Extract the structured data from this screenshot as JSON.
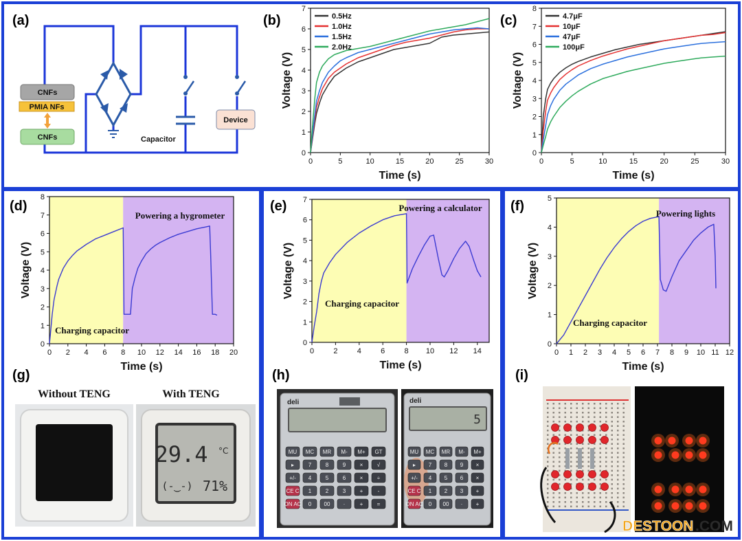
{
  "colors": {
    "frame": "#1a3fd6",
    "wire": "#1b36d9",
    "charge_bg": "#fdfdb4",
    "power_bg": "#d4b4f2",
    "trace": "#3a3ad2",
    "b_05": "#333333",
    "b_10": "#e53030",
    "b_15": "#2a6fdd",
    "b_20": "#2eaa5c",
    "c_47": "#333333",
    "c_10": "#e53030",
    "c_47uF": "#2a6fdd",
    "c_100": "#2eaa5c"
  },
  "labels": {
    "a": "(a)",
    "b": "(b)",
    "c": "(c)",
    "d": "(d)",
    "e": "(e)",
    "f": "(f)",
    "g": "(g)",
    "h": "(h)",
    "i": "(i)"
  },
  "circuit": {
    "cnfs_top": "CNFs",
    "pmia": "PMIA NFs",
    "cnfs_bottom": "CNFs",
    "capacitor": "Capacitor",
    "device": "Device"
  },
  "photos": {
    "g_left_caption": "Without TENG",
    "g_right_caption": "With TENG",
    "display_temp": "29.4",
    "display_unit": "°C",
    "display_face": "(-‿-)",
    "display_humidity": "71%",
    "calc_brand": "deli",
    "calc_display_right": "5",
    "calc_keys": [
      [
        "MU",
        "MC",
        "MR",
        "M-",
        "M+",
        "GT"
      ],
      [
        "▸",
        "7",
        "8",
        "9",
        "×",
        "√"
      ],
      [
        "+/-",
        "4",
        "5",
        "6",
        "×",
        "÷"
      ],
      [
        "CE C",
        "1",
        "2",
        "3",
        "+",
        "-"
      ],
      [
        "ON AC",
        "0",
        "00",
        "·",
        "+",
        "="
      ]
    ],
    "watermark_a": "DESTOON",
    "watermark_b": ".COM"
  },
  "chart_data": [
    {
      "id": "b",
      "type": "line",
      "xlabel": "Time (s)",
      "ylabel": "Voltage (V)",
      "xlim": [
        0,
        30
      ],
      "ylim": [
        0,
        7
      ],
      "xticks": [
        0,
        5,
        10,
        15,
        20,
        25,
        30
      ],
      "yticks": [
        0,
        1,
        2,
        3,
        4,
        5,
        6,
        7
      ],
      "legend_position": "top-left",
      "series": [
        {
          "name": "0.5Hz",
          "color_key": "b_05",
          "x": [
            0,
            0.3,
            0.7,
            1,
            1.5,
            2,
            3,
            4,
            5,
            6,
            8,
            10,
            12,
            14,
            16,
            18,
            20,
            22,
            24,
            26,
            28,
            30
          ],
          "y": [
            0,
            0.6,
            1.4,
            1.9,
            2.4,
            2.8,
            3.3,
            3.7,
            3.9,
            4.1,
            4.4,
            4.6,
            4.8,
            5.0,
            5.1,
            5.2,
            5.3,
            5.6,
            5.7,
            5.75,
            5.8,
            5.85
          ]
        },
        {
          "name": "1.0Hz",
          "color_key": "b_10",
          "x": [
            0,
            0.3,
            0.7,
            1,
            1.5,
            2,
            3,
            4,
            5,
            6,
            8,
            10,
            12,
            14,
            16,
            18,
            20,
            22,
            24,
            26,
            28,
            30
          ],
          "y": [
            0,
            0.7,
            1.6,
            2.2,
            2.7,
            3.1,
            3.6,
            3.9,
            4.1,
            4.3,
            4.6,
            4.8,
            5.0,
            5.2,
            5.35,
            5.45,
            5.55,
            5.7,
            5.85,
            5.95,
            6.0,
            6.0
          ]
        },
        {
          "name": "1.5Hz",
          "color_key": "b_15",
          "x": [
            0,
            0.3,
            0.7,
            1,
            1.5,
            2,
            3,
            4,
            5,
            6,
            8,
            10,
            12,
            14,
            16,
            18,
            20,
            22,
            24,
            26,
            28,
            30
          ],
          "y": [
            0,
            0.8,
            1.8,
            2.5,
            3.0,
            3.4,
            3.9,
            4.2,
            4.45,
            4.6,
            4.85,
            5.0,
            5.15,
            5.3,
            5.45,
            5.6,
            5.75,
            5.85,
            5.95,
            6.0,
            6.05,
            6.0
          ]
        },
        {
          "name": "2.0Hz",
          "color_key": "b_20",
          "x": [
            0,
            0.3,
            0.7,
            1,
            1.5,
            2,
            3,
            4,
            5,
            6,
            8,
            10,
            12,
            14,
            16,
            18,
            20,
            22,
            24,
            26,
            28,
            30
          ],
          "y": [
            0,
            1.2,
            2.6,
            3.4,
            3.9,
            4.2,
            4.55,
            4.75,
            4.85,
            4.95,
            5.05,
            5.15,
            5.3,
            5.45,
            5.6,
            5.75,
            5.9,
            6.0,
            6.1,
            6.2,
            6.35,
            6.5
          ]
        }
      ]
    },
    {
      "id": "c",
      "type": "line",
      "xlabel": "Time (s)",
      "ylabel": "Voltage (V)",
      "xlim": [
        0,
        30
      ],
      "ylim": [
        0,
        8
      ],
      "xticks": [
        0,
        5,
        10,
        15,
        20,
        25,
        30
      ],
      "yticks": [
        0,
        1,
        2,
        3,
        4,
        5,
        6,
        7,
        8
      ],
      "legend_position": "top-left",
      "series": [
        {
          "name": "4.7μF",
          "color_key": "c_47",
          "x": [
            0,
            0.3,
            0.7,
            1,
            1.5,
            2,
            3,
            4,
            5,
            6,
            8,
            10,
            12,
            14,
            16,
            18,
            20,
            22,
            24,
            26,
            28,
            30
          ],
          "y": [
            0,
            2.0,
            3.0,
            3.5,
            3.85,
            4.1,
            4.45,
            4.7,
            4.9,
            5.05,
            5.3,
            5.5,
            5.7,
            5.85,
            6.0,
            6.1,
            6.2,
            6.3,
            6.4,
            6.5,
            6.6,
            6.7
          ]
        },
        {
          "name": "10μF",
          "color_key": "c_10",
          "x": [
            0,
            0.3,
            0.7,
            1,
            1.5,
            2,
            3,
            4,
            5,
            6,
            8,
            10,
            12,
            14,
            16,
            18,
            20,
            22,
            24,
            26,
            28,
            30
          ],
          "y": [
            0,
            1.2,
            2.3,
            2.9,
            3.3,
            3.6,
            4.05,
            4.35,
            4.6,
            4.8,
            5.1,
            5.35,
            5.55,
            5.75,
            5.9,
            6.05,
            6.2,
            6.3,
            6.4,
            6.5,
            6.55,
            6.65
          ]
        },
        {
          "name": "47μF",
          "color_key": "c_47uF",
          "x": [
            0,
            0.3,
            0.7,
            1,
            1.5,
            2,
            3,
            4,
            5,
            6,
            8,
            10,
            12,
            14,
            16,
            18,
            20,
            22,
            24,
            26,
            28,
            30
          ],
          "y": [
            0,
            0.7,
            1.5,
            2.1,
            2.6,
            2.95,
            3.45,
            3.8,
            4.05,
            4.3,
            4.65,
            4.9,
            5.1,
            5.3,
            5.45,
            5.6,
            5.75,
            5.85,
            5.95,
            6.05,
            6.1,
            6.15
          ]
        },
        {
          "name": "100μF",
          "color_key": "c_100",
          "x": [
            0,
            0.3,
            0.7,
            1,
            1.5,
            2,
            3,
            4,
            5,
            6,
            8,
            10,
            12,
            14,
            16,
            18,
            20,
            22,
            24,
            26,
            28,
            30
          ],
          "y": [
            0,
            0.4,
            0.9,
            1.3,
            1.7,
            2.0,
            2.5,
            2.85,
            3.15,
            3.4,
            3.8,
            4.1,
            4.3,
            4.5,
            4.65,
            4.8,
            4.95,
            5.05,
            5.15,
            5.25,
            5.3,
            5.35
          ]
        }
      ]
    },
    {
      "id": "d",
      "type": "line",
      "xlabel": "Time (s)",
      "ylabel": "Voltage (V)",
      "xlim": [
        0,
        20
      ],
      "ylim": [
        0,
        8
      ],
      "xticks": [
        0,
        2,
        4,
        6,
        8,
        10,
        12,
        14,
        16,
        18,
        20
      ],
      "yticks": [
        0,
        1,
        2,
        3,
        4,
        5,
        6,
        7,
        8
      ],
      "split_x": 8,
      "annotations": [
        "Charging capacitor",
        "Powering a hygrometer"
      ],
      "series": [
        {
          "name": "",
          "color_key": "trace",
          "x": [
            0,
            0.1,
            0.3,
            0.5,
            0.8,
            1,
            1.5,
            2,
            2.5,
            3,
            4,
            5,
            6,
            7,
            8,
            8.01,
            8.1,
            8.8,
            9,
            9.3,
            9.6,
            10,
            10.5,
            11,
            11.5,
            12,
            13,
            14,
            15,
            16,
            17,
            17.4,
            17.5,
            17.7,
            18,
            18.2
          ],
          "y": [
            0,
            0.5,
            1.6,
            2.4,
            3.1,
            3.5,
            4.1,
            4.5,
            4.8,
            5.05,
            5.4,
            5.7,
            5.9,
            6.1,
            6.3,
            6.3,
            1.6,
            1.6,
            3.0,
            3.6,
            4.1,
            4.5,
            4.9,
            5.15,
            5.35,
            5.5,
            5.75,
            5.95,
            6.1,
            6.25,
            6.35,
            6.4,
            5.0,
            1.6,
            1.6,
            1.55
          ]
        }
      ]
    },
    {
      "id": "e",
      "type": "line",
      "xlabel": "Time (s)",
      "ylabel": "Voltage (V)",
      "xlim": [
        0,
        15
      ],
      "ylim": [
        0,
        7
      ],
      "xticks": [
        0,
        2,
        4,
        6,
        8,
        10,
        12,
        14
      ],
      "yticks": [
        0,
        1,
        2,
        3,
        4,
        5,
        6,
        7
      ],
      "split_x": 8,
      "annotations": [
        "Charging capacitor",
        "Powering a calculator"
      ],
      "series": [
        {
          "name": "",
          "color_key": "trace",
          "x": [
            0,
            0.2,
            0.4,
            0.6,
            0.8,
            1,
            1.5,
            2,
            3,
            4,
            5,
            6,
            7,
            8,
            8.05,
            8.5,
            9,
            9.5,
            10,
            10.3,
            10.7,
            11,
            11.2,
            11.5,
            12,
            12.5,
            13,
            13.3,
            13.7,
            14,
            14.3
          ],
          "y": [
            0,
            0.8,
            1.5,
            2.4,
            3.0,
            3.4,
            3.9,
            4.3,
            4.9,
            5.35,
            5.7,
            6.0,
            6.2,
            6.3,
            2.9,
            3.6,
            4.2,
            4.75,
            5.2,
            5.25,
            4.1,
            3.3,
            3.2,
            3.5,
            4.1,
            4.6,
            4.95,
            4.7,
            4.0,
            3.5,
            3.2
          ]
        }
      ]
    },
    {
      "id": "f",
      "type": "line",
      "xlabel": "Time (s)",
      "ylabel": "Voltage (V)",
      "xlim": [
        0,
        12
      ],
      "ylim": [
        0,
        5
      ],
      "xticks": [
        0,
        1,
        2,
        3,
        4,
        5,
        6,
        7,
        8,
        9,
        10,
        11,
        12
      ],
      "yticks": [
        0,
        1,
        2,
        3,
        4,
        5
      ],
      "split_x": 7.1,
      "annotations": [
        "Charging capacitor",
        "Powering lights"
      ],
      "series": [
        {
          "name": "",
          "color_key": "trace",
          "x": [
            0,
            0.5,
            1,
            1.5,
            2,
            2.5,
            3,
            3.5,
            4,
            4.5,
            5,
            5.5,
            6,
            6.5,
            7,
            7.1,
            7.2,
            7.4,
            7.6,
            8,
            8.5,
            9,
            9.5,
            10,
            10.5,
            10.9,
            11,
            11.05
          ],
          "y": [
            0,
            0.3,
            0.75,
            1.2,
            1.65,
            2.1,
            2.55,
            2.95,
            3.3,
            3.6,
            3.85,
            4.05,
            4.2,
            4.3,
            4.35,
            4.35,
            2.2,
            1.85,
            1.8,
            2.3,
            2.85,
            3.2,
            3.55,
            3.8,
            4.0,
            4.1,
            3.0,
            1.9
          ]
        }
      ]
    }
  ]
}
